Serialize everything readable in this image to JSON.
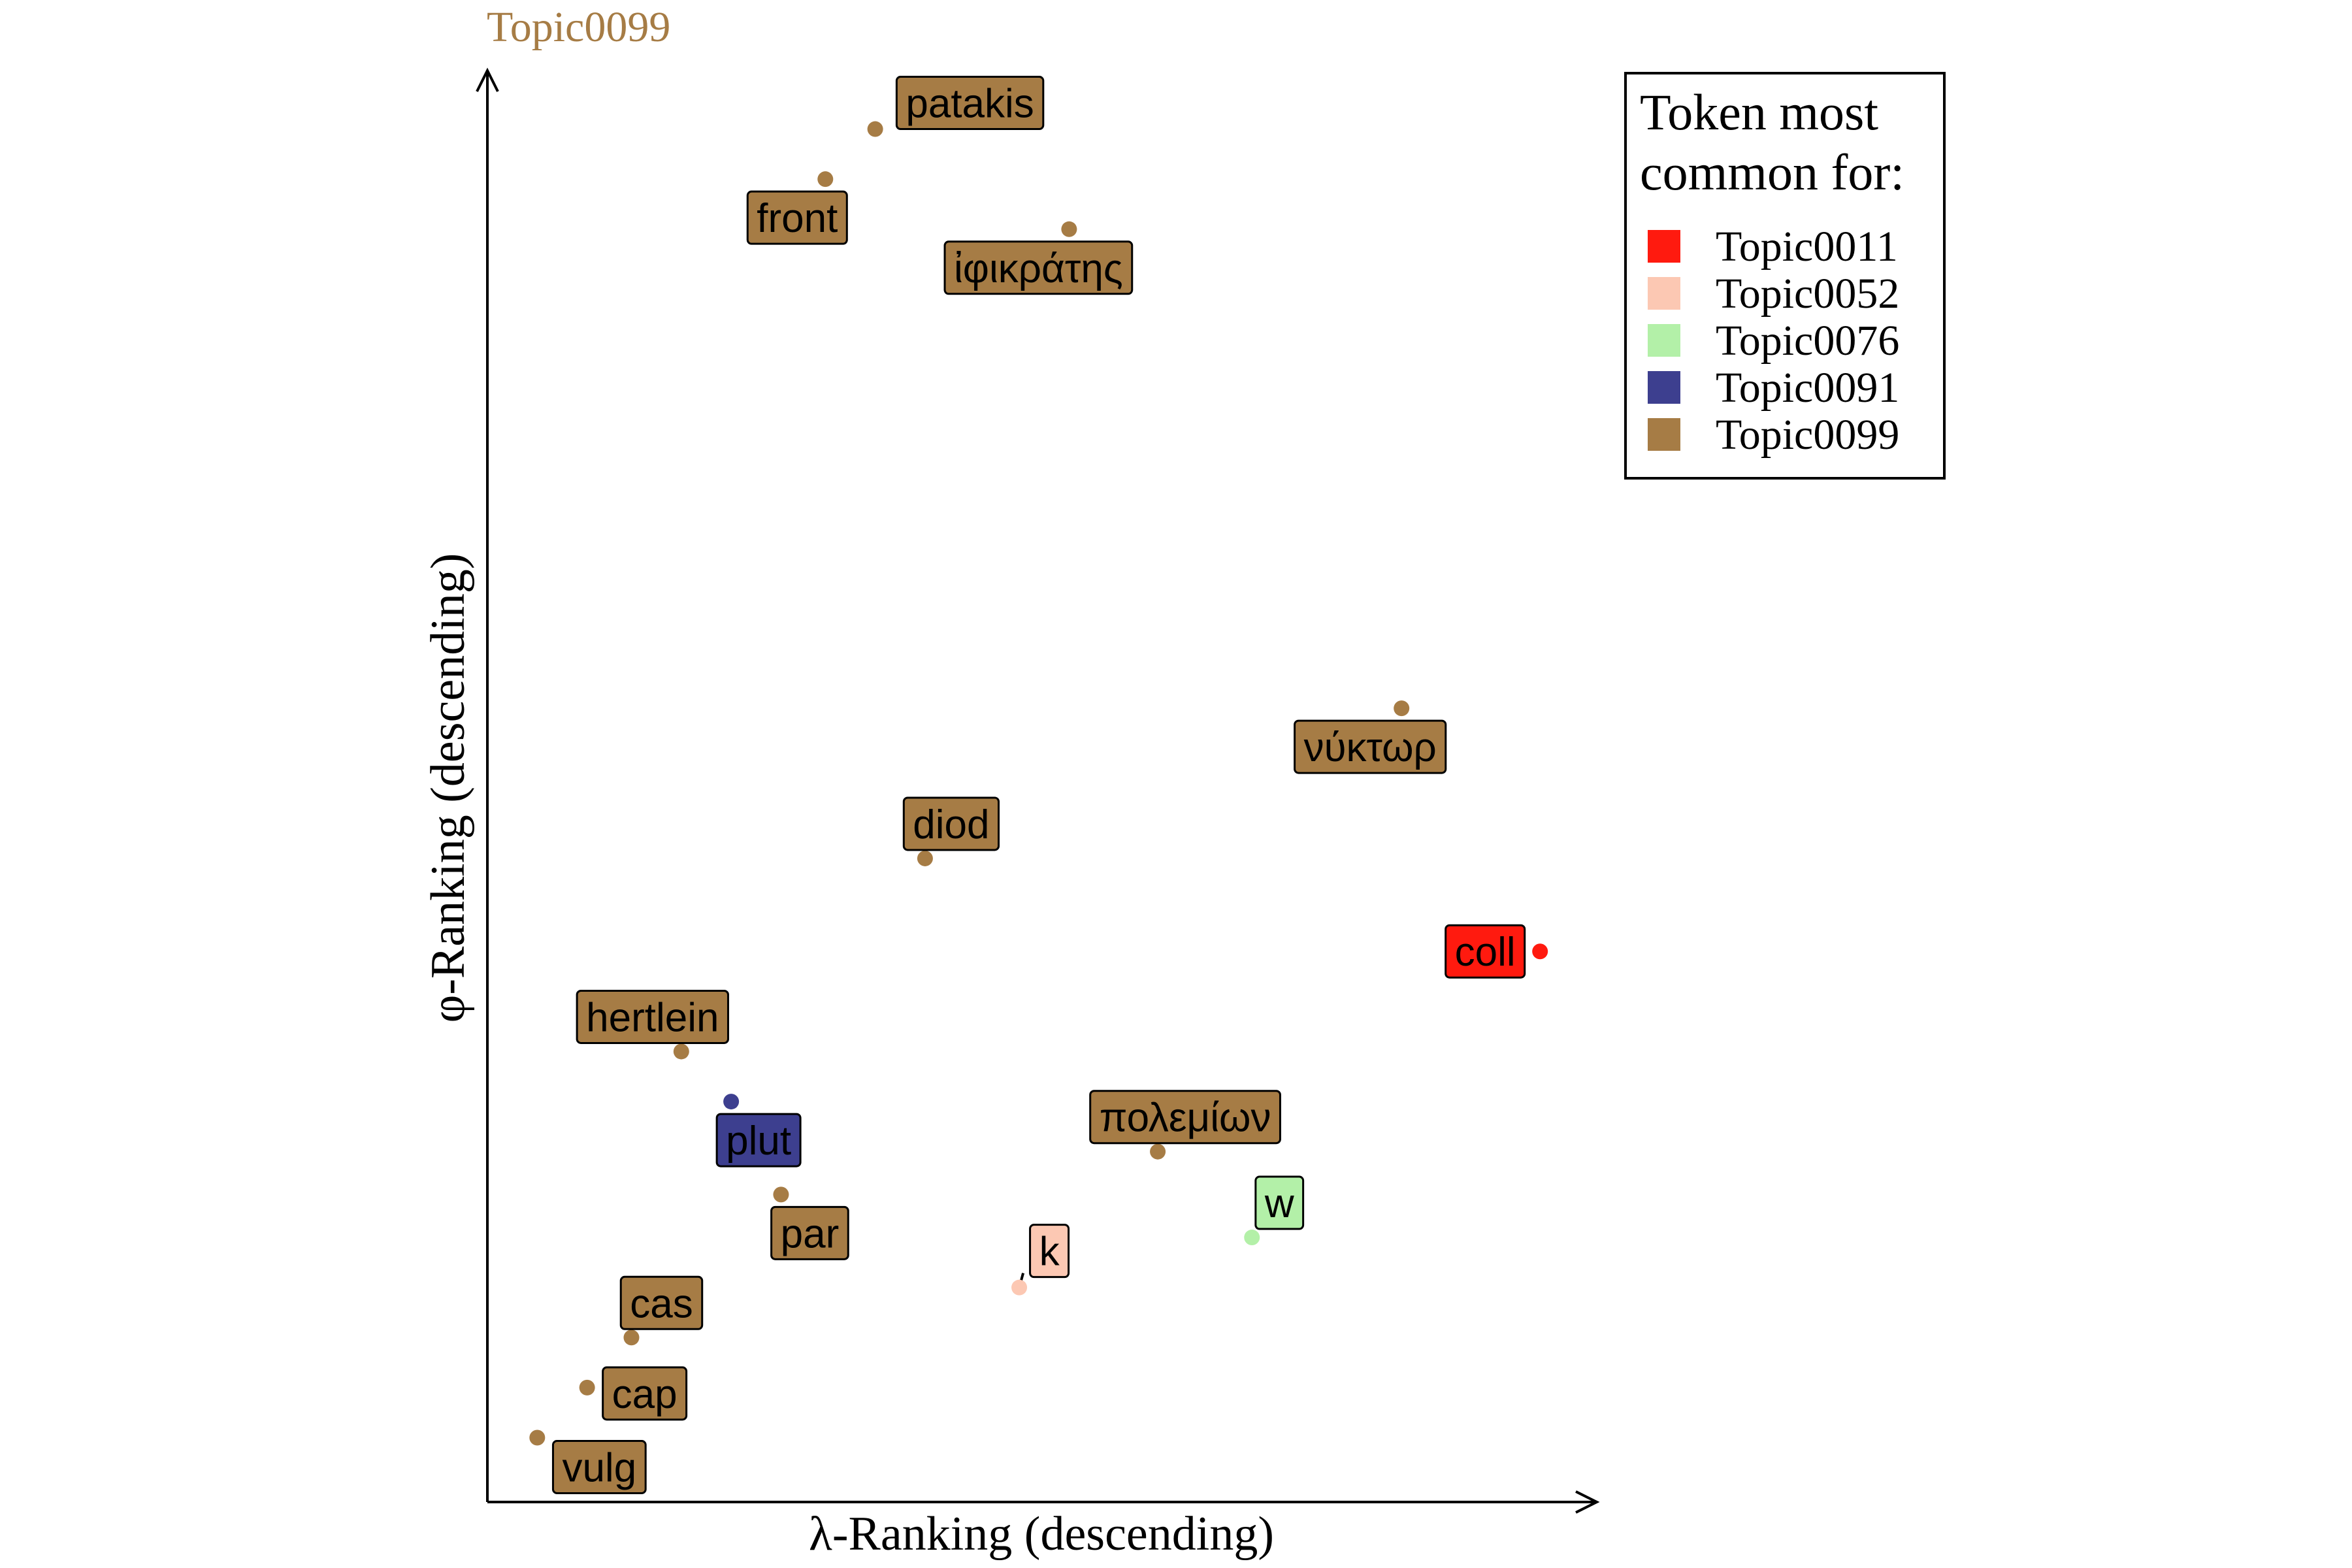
{
  "chart_data": {
    "type": "scatter",
    "title": "Topic0099",
    "title_color": "#a67c45",
    "xlabel": "λ-Ranking (descending)",
    "ylabel": "φ-Ranking (descending)",
    "xlim": [
      0,
      100
    ],
    "ylim": [
      0,
      100
    ],
    "grid": false,
    "legend": {
      "title_lines": [
        "Token most",
        "common for:"
      ],
      "placement": "top-right",
      "entries": [
        {
          "name": "Topic0011",
          "color": "#ff1a0f"
        },
        {
          "name": "Topic0052",
          "color": "#fcc8b3"
        },
        {
          "name": "Topic0076",
          "color": "#b3f0a8"
        },
        {
          "name": "Topic0091",
          "color": "#3d3f8f"
        },
        {
          "name": "Topic0099",
          "color": "#a67c45"
        }
      ]
    },
    "points": [
      {
        "label": "patakis",
        "x": 35,
        "y": 96,
        "topic": "Topic0099"
      },
      {
        "label": "front",
        "x": 30.5,
        "y": 92.5,
        "topic": "Topic0099"
      },
      {
        "label": "ἰφικράτης",
        "x": 52.5,
        "y": 89,
        "topic": "Topic0099"
      },
      {
        "label": "νύκτωρ",
        "x": 82.5,
        "y": 55.5,
        "topic": "Topic0099"
      },
      {
        "label": "diod",
        "x": 39.5,
        "y": 45,
        "topic": "Topic0099"
      },
      {
        "label": "coll",
        "x": 95,
        "y": 38.5,
        "topic": "Topic0011"
      },
      {
        "label": "hertlein",
        "x": 17.5,
        "y": 31.5,
        "topic": "Topic0099"
      },
      {
        "label": "plut",
        "x": 22,
        "y": 28,
        "topic": "Topic0091"
      },
      {
        "label": "πολεμίων",
        "x": 60.5,
        "y": 24.5,
        "topic": "Topic0099"
      },
      {
        "label": "par",
        "x": 26.5,
        "y": 21.5,
        "topic": "Topic0099"
      },
      {
        "label": "w",
        "x": 69,
        "y": 18.5,
        "topic": "Topic0076"
      },
      {
        "label": "k",
        "x": 48,
        "y": 15,
        "topic": "Topic0052"
      },
      {
        "label": "cas",
        "x": 13,
        "y": 11.5,
        "topic": "Topic0099"
      },
      {
        "label": "cap",
        "x": 9,
        "y": 8,
        "topic": "Topic0099"
      },
      {
        "label": "vulg",
        "x": 4.5,
        "y": 4.5,
        "topic": "Topic0099"
      }
    ]
  }
}
